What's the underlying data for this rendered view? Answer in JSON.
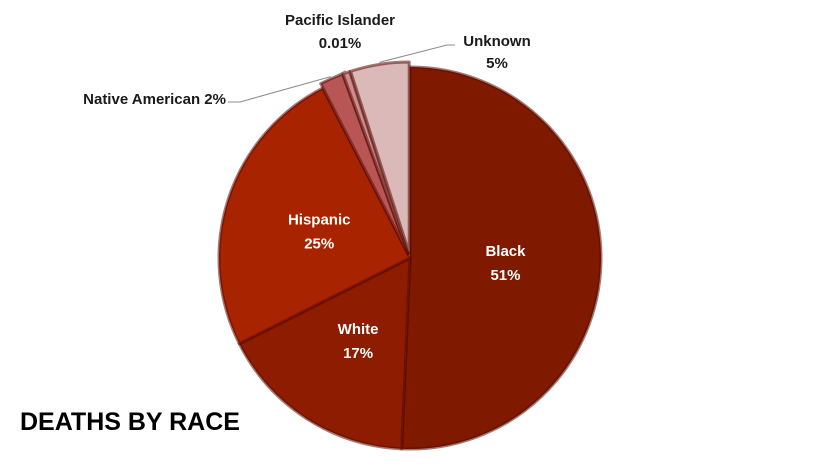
{
  "chart_data": {
    "type": "pie",
    "title": "DEATHS BY RACE",
    "start_angle_deg": 0,
    "direction": "clockwise",
    "slices": [
      {
        "label": "Black",
        "value_text": "51%",
        "value": 51,
        "color": "#7f1a00",
        "label_pos": "inside"
      },
      {
        "label": "White",
        "value_text": "17%",
        "value": 17,
        "color": "#8d1c00",
        "label_pos": "inside"
      },
      {
        "label": "Hispanic",
        "value_text": "25%",
        "value": 25,
        "color": "#a82300",
        "label_pos": "inside"
      },
      {
        "label": "Native American",
        "value_text": "2%",
        "value": 2,
        "color": "#b85555",
        "label_pos": "outside"
      },
      {
        "label": "Pacific Islander",
        "value_text": "0.01%",
        "value": 0.01,
        "color": "#c98f8f",
        "label_pos": "outside"
      },
      {
        "label": "Unknown",
        "value_text": "5%",
        "value": 5,
        "color": "#dbb9b9",
        "label_pos": "outside"
      }
    ]
  }
}
